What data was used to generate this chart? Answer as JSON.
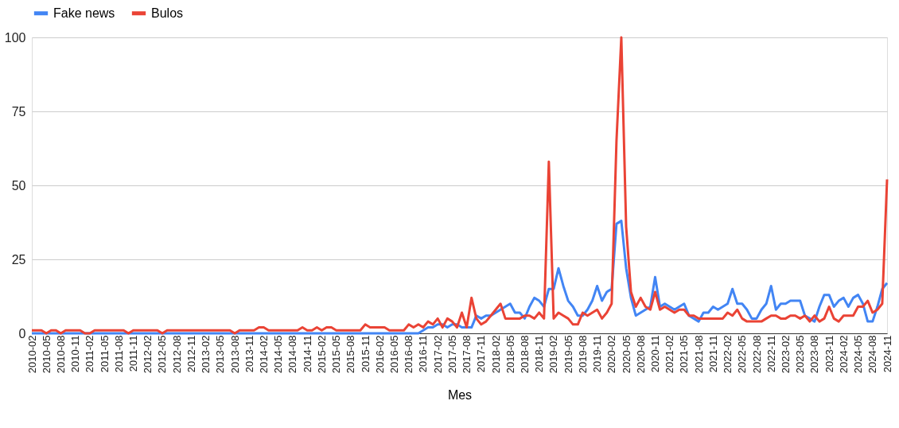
{
  "chart_data": {
    "type": "line",
    "xlabel": "Mes",
    "categories": [
      "2010-02",
      null,
      null,
      "2010-05",
      null,
      null,
      "2010-08",
      null,
      null,
      "2010-11",
      null,
      null,
      "2011-02",
      null,
      null,
      "2011-05",
      null,
      null,
      "2011-08",
      null,
      null,
      "2011-11",
      null,
      null,
      "2012-02",
      null,
      null,
      "2012-05",
      null,
      null,
      "2012-08",
      null,
      null,
      "2012-11",
      null,
      null,
      "2013-02",
      null,
      null,
      "2013-05",
      null,
      null,
      "2013-08",
      null,
      null,
      "2013-11",
      null,
      null,
      "2014-02",
      null,
      null,
      "2014-05",
      null,
      null,
      "2014-08",
      null,
      null,
      "2014-11",
      null,
      null,
      "2015-02",
      null,
      null,
      "2015-05",
      null,
      null,
      "2015-08",
      null,
      null,
      "2015-11",
      null,
      null,
      "2016-02",
      null,
      null,
      "2016-05",
      null,
      null,
      "2016-08",
      null,
      null,
      "2016-11",
      null,
      null,
      "2017-02",
      null,
      null,
      "2017-05",
      null,
      null,
      "2017-08",
      null,
      null,
      "2017-11",
      null,
      null,
      "2018-02",
      null,
      null,
      "2018-05",
      null,
      null,
      "2018-08",
      null,
      null,
      "2018-11",
      null,
      null,
      "2019-02",
      null,
      null,
      "2019-05",
      null,
      null,
      "2019-08",
      null,
      null,
      "2019-11",
      null,
      null,
      "2020-02",
      null,
      null,
      "2020-05",
      null,
      null,
      "2020-08",
      null,
      null,
      "2020-11",
      null,
      null,
      "2021-02",
      null,
      null,
      "2021-05",
      null,
      null,
      "2021-08",
      null,
      null,
      "2021-11",
      null,
      null,
      "2022-02",
      null,
      null,
      "2022-05",
      null,
      null,
      "2022-08",
      null,
      null,
      "2022-11",
      null,
      null,
      "2023-02",
      null,
      null,
      "2023-05",
      null,
      null,
      "2023-08",
      null,
      null,
      "2023-11",
      null,
      null,
      "2024-02",
      null,
      null,
      "2024-05",
      null,
      null,
      "2024-08",
      null,
      null,
      "2024-11"
    ],
    "series": [
      {
        "name": "Fake news",
        "color": "#4285f4",
        "values": [
          0,
          0,
          0,
          0,
          0,
          0,
          0,
          0,
          0,
          0,
          0,
          0,
          0,
          0,
          0,
          0,
          0,
          0,
          0,
          0,
          0,
          0,
          0,
          0,
          0,
          0,
          0,
          0,
          0,
          0,
          0,
          0,
          0,
          0,
          0,
          0,
          0,
          0,
          0,
          0,
          0,
          0,
          0,
          0,
          0,
          0,
          0,
          0,
          0,
          0,
          0,
          0,
          0,
          0,
          0,
          0,
          0,
          0,
          0,
          0,
          0,
          0,
          0,
          0,
          0,
          0,
          0,
          0,
          0,
          0,
          0,
          0,
          0,
          0,
          0,
          0,
          0,
          0,
          0,
          0,
          0,
          1,
          2,
          2,
          3,
          3,
          2,
          3,
          3,
          2,
          2,
          2,
          6,
          5,
          6,
          6,
          7,
          8,
          9,
          10,
          7,
          7,
          5,
          9,
          12,
          11,
          9,
          15,
          15,
          22,
          16,
          11,
          9,
          6,
          6,
          8,
          11,
          16,
          11,
          14,
          15,
          37,
          38,
          22,
          12,
          6,
          7,
          8,
          9,
          19,
          9,
          10,
          9,
          8,
          9,
          10,
          6,
          5,
          4,
          7,
          7,
          9,
          8,
          9,
          10,
          15,
          10,
          10,
          8,
          5,
          5,
          8,
          10,
          16,
          8,
          10,
          10,
          11,
          11,
          11,
          6,
          5,
          4,
          9,
          13,
          13,
          9,
          11,
          12,
          9,
          12,
          13,
          10,
          4,
          4,
          9,
          15,
          17
        ]
      },
      {
        "name": "Bulos",
        "color": "#ea4335",
        "values": [
          1,
          1,
          1,
          0,
          1,
          1,
          0,
          1,
          1,
          1,
          1,
          0,
          0,
          1,
          1,
          1,
          1,
          1,
          1,
          1,
          0,
          1,
          1,
          1,
          1,
          1,
          1,
          0,
          1,
          1,
          1,
          1,
          1,
          1,
          1,
          1,
          1,
          1,
          1,
          1,
          1,
          1,
          0,
          1,
          1,
          1,
          1,
          2,
          2,
          1,
          1,
          1,
          1,
          1,
          1,
          1,
          2,
          1,
          1,
          2,
          1,
          2,
          2,
          1,
          1,
          1,
          1,
          1,
          1,
          3,
          2,
          2,
          2,
          2,
          1,
          1,
          1,
          1,
          3,
          2,
          3,
          2,
          4,
          3,
          5,
          2,
          5,
          4,
          2,
          7,
          2,
          12,
          5,
          3,
          4,
          6,
          8,
          10,
          5,
          5,
          5,
          5,
          6,
          6,
          5,
          7,
          5,
          58,
          5,
          7,
          6,
          5,
          3,
          3,
          7,
          6,
          7,
          8,
          5,
          7,
          10,
          65,
          100,
          36,
          14,
          9,
          12,
          9,
          8,
          14,
          8,
          9,
          8,
          7,
          8,
          8,
          6,
          6,
          5,
          5,
          5,
          5,
          5,
          5,
          7,
          6,
          8,
          5,
          4,
          4,
          4,
          4,
          5,
          6,
          6,
          5,
          5,
          6,
          6,
          5,
          6,
          4,
          6,
          4,
          5,
          9,
          5,
          4,
          6,
          6,
          6,
          9,
          9,
          11,
          7,
          8,
          10,
          52
        ]
      }
    ],
    "ylim": [
      0,
      100
    ],
    "yticks": [
      0,
      25,
      50,
      75,
      100
    ],
    "grid": "y",
    "legend": "top",
    "marker": "none",
    "line_style": "solid"
  }
}
